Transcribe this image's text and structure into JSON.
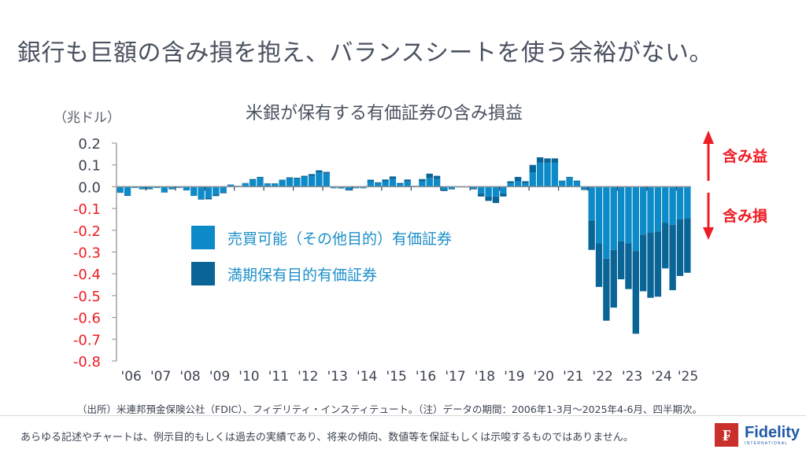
{
  "page": {
    "title": "銀行も巨額の含み損を抱え、バランスシートを使う余裕がない。",
    "source": "（出所）米連邦預金保険公社（FDIC）、フィデリティ・インスティテュート。（注）データの期間：2006年1-3月～2025年4-6月、四半期次。",
    "disclaimer": "あらゆる記述やチャートは、例示目的もしくは過去の実績であり、将来の傾向、数値等を保証もしくは示唆するものではありません。",
    "logo": {
      "mark": "₣",
      "name": "Fidelity",
      "sub": "INTERNATIONAL"
    }
  },
  "annotations": {
    "gain_label": "含み益",
    "loss_label": "含み損",
    "arrow_color": "#ee1c24"
  },
  "colors": {
    "afs": "#0d8bc9",
    "htm": "#0a6596",
    "negative_tick": "#ee1c24",
    "positive_tick": "#3c4350"
  },
  "chart_data": {
    "type": "bar",
    "stacked": true,
    "title": "米銀が保有する有価証券の含み損益",
    "ylabel": "（兆ドル）",
    "xlabel": "",
    "ylim": [
      -0.8,
      0.2
    ],
    "yticks": [
      "0.2",
      "0.1",
      "0.0",
      "-0.1",
      "-0.2",
      "-0.3",
      "-0.4",
      "-0.5",
      "-0.6",
      "-0.7",
      "-0.8"
    ],
    "categories": [
      "'06",
      "'07",
      "'08",
      "'09",
      "'10",
      "'11",
      "'12",
      "'13",
      "'14",
      "'15",
      "'16",
      "'17",
      "'18",
      "'19",
      "'20",
      "'21",
      "'22",
      "'23",
      "'24",
      "'25"
    ],
    "frequency": "quarterly, 2006Q1–2025Q2",
    "legend": [
      "売買可能（その他目的）有価証券",
      "満期保有目的有価証券"
    ],
    "grid": false,
    "series": [
      {
        "name": "売買可能（その他目的）有価証券",
        "values": [
          -0.025,
          -0.04,
          -0.005,
          -0.01,
          -0.01,
          -0.005,
          -0.025,
          -0.01,
          -0.005,
          -0.015,
          -0.04,
          -0.055,
          -0.05,
          -0.035,
          -0.025,
          0.008,
          0.003,
          0.015,
          0.03,
          0.04,
          0.012,
          0.012,
          0.028,
          0.038,
          0.036,
          0.045,
          0.05,
          0.065,
          0.06,
          -0.005,
          -0.005,
          -0.012,
          -0.005,
          -0.005,
          0.025,
          0.015,
          0.025,
          0.035,
          0.012,
          0.025,
          0.002,
          0.025,
          0.04,
          0.035,
          -0.015,
          -0.008,
          -0.002,
          -0.002,
          -0.008,
          -0.03,
          -0.045,
          -0.045,
          -0.03,
          0.015,
          0.025,
          0.015,
          0.065,
          0.11,
          0.11,
          0.11,
          0.025,
          0.04,
          0.025,
          -0.01,
          -0.155,
          -0.26,
          -0.33,
          -0.29,
          -0.25,
          -0.26,
          -0.295,
          -0.22,
          -0.21,
          -0.205,
          -0.165,
          -0.175,
          -0.15,
          -0.145
        ],
        "color": "#0d8bc9"
      },
      {
        "name": "満期保有目的有価証券",
        "values": [
          -0.003,
          -0.002,
          -0.001,
          -0.002,
          -0.002,
          -0.001,
          -0.002,
          -0.002,
          -0.001,
          -0.002,
          -0.002,
          -0.004,
          -0.008,
          -0.008,
          -0.005,
          0.002,
          0.001,
          0.002,
          0.005,
          0.005,
          0.003,
          0.003,
          0.004,
          0.005,
          0.005,
          0.005,
          0.008,
          0.01,
          0.008,
          -0.002,
          -0.003,
          -0.005,
          -0.002,
          -0.002,
          0.007,
          0.005,
          0.008,
          0.012,
          0.005,
          0.008,
          0.002,
          0.01,
          0.02,
          0.015,
          -0.005,
          -0.004,
          -0.001,
          -0.001,
          -0.004,
          -0.015,
          -0.02,
          -0.03,
          -0.015,
          0.01,
          0.02,
          0.01,
          0.035,
          0.025,
          0.02,
          0.02,
          0.003,
          0.005,
          0.003,
          -0.005,
          -0.135,
          -0.2,
          -0.285,
          -0.265,
          -0.175,
          -0.21,
          -0.38,
          -0.26,
          -0.3,
          -0.3,
          -0.21,
          -0.3,
          -0.26,
          -0.25
        ],
        "color": "#0a6596"
      }
    ]
  }
}
